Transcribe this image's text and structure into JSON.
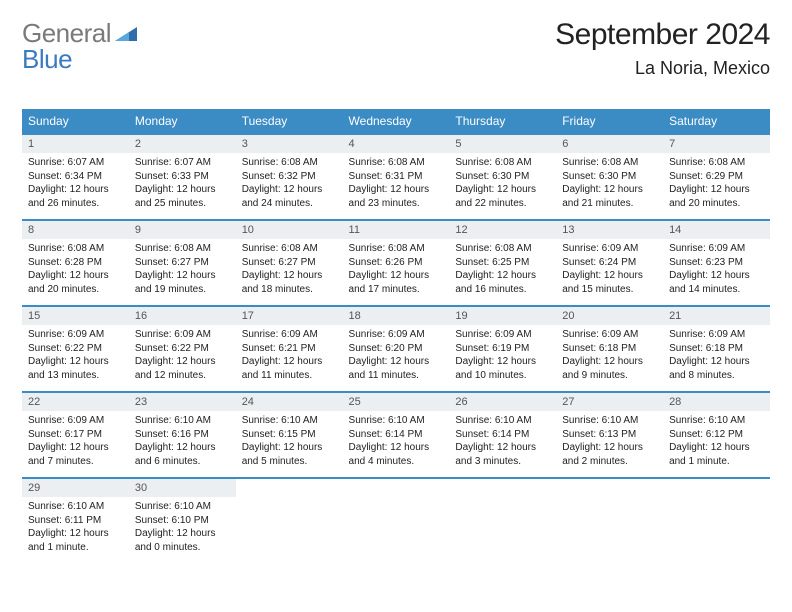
{
  "logo": {
    "text1": "General",
    "text2": "Blue"
  },
  "title": "September 2024",
  "location": "La Noria, Mexico",
  "colors": {
    "header_bg": "#3b8bc5",
    "header_text": "#ffffff",
    "daynum_bg": "#eceff1",
    "daynum_text": "#555555",
    "border": "#3b8bc5",
    "body_text": "#222222",
    "logo_gray": "#7a7a7a",
    "logo_blue": "#3b7bbf"
  },
  "day_headers": [
    "Sunday",
    "Monday",
    "Tuesday",
    "Wednesday",
    "Thursday",
    "Friday",
    "Saturday"
  ],
  "weeks": [
    [
      {
        "n": "1",
        "sr": "6:07 AM",
        "ss": "6:34 PM",
        "dl": "12 hours and 26 minutes."
      },
      {
        "n": "2",
        "sr": "6:07 AM",
        "ss": "6:33 PM",
        "dl": "12 hours and 25 minutes."
      },
      {
        "n": "3",
        "sr": "6:08 AM",
        "ss": "6:32 PM",
        "dl": "12 hours and 24 minutes."
      },
      {
        "n": "4",
        "sr": "6:08 AM",
        "ss": "6:31 PM",
        "dl": "12 hours and 23 minutes."
      },
      {
        "n": "5",
        "sr": "6:08 AM",
        "ss": "6:30 PM",
        "dl": "12 hours and 22 minutes."
      },
      {
        "n": "6",
        "sr": "6:08 AM",
        "ss": "6:30 PM",
        "dl": "12 hours and 21 minutes."
      },
      {
        "n": "7",
        "sr": "6:08 AM",
        "ss": "6:29 PM",
        "dl": "12 hours and 20 minutes."
      }
    ],
    [
      {
        "n": "8",
        "sr": "6:08 AM",
        "ss": "6:28 PM",
        "dl": "12 hours and 20 minutes."
      },
      {
        "n": "9",
        "sr": "6:08 AM",
        "ss": "6:27 PM",
        "dl": "12 hours and 19 minutes."
      },
      {
        "n": "10",
        "sr": "6:08 AM",
        "ss": "6:27 PM",
        "dl": "12 hours and 18 minutes."
      },
      {
        "n": "11",
        "sr": "6:08 AM",
        "ss": "6:26 PM",
        "dl": "12 hours and 17 minutes."
      },
      {
        "n": "12",
        "sr": "6:08 AM",
        "ss": "6:25 PM",
        "dl": "12 hours and 16 minutes."
      },
      {
        "n": "13",
        "sr": "6:09 AM",
        "ss": "6:24 PM",
        "dl": "12 hours and 15 minutes."
      },
      {
        "n": "14",
        "sr": "6:09 AM",
        "ss": "6:23 PM",
        "dl": "12 hours and 14 minutes."
      }
    ],
    [
      {
        "n": "15",
        "sr": "6:09 AM",
        "ss": "6:22 PM",
        "dl": "12 hours and 13 minutes."
      },
      {
        "n": "16",
        "sr": "6:09 AM",
        "ss": "6:22 PM",
        "dl": "12 hours and 12 minutes."
      },
      {
        "n": "17",
        "sr": "6:09 AM",
        "ss": "6:21 PM",
        "dl": "12 hours and 11 minutes."
      },
      {
        "n": "18",
        "sr": "6:09 AM",
        "ss": "6:20 PM",
        "dl": "12 hours and 11 minutes."
      },
      {
        "n": "19",
        "sr": "6:09 AM",
        "ss": "6:19 PM",
        "dl": "12 hours and 10 minutes."
      },
      {
        "n": "20",
        "sr": "6:09 AM",
        "ss": "6:18 PM",
        "dl": "12 hours and 9 minutes."
      },
      {
        "n": "21",
        "sr": "6:09 AM",
        "ss": "6:18 PM",
        "dl": "12 hours and 8 minutes."
      }
    ],
    [
      {
        "n": "22",
        "sr": "6:09 AM",
        "ss": "6:17 PM",
        "dl": "12 hours and 7 minutes."
      },
      {
        "n": "23",
        "sr": "6:10 AM",
        "ss": "6:16 PM",
        "dl": "12 hours and 6 minutes."
      },
      {
        "n": "24",
        "sr": "6:10 AM",
        "ss": "6:15 PM",
        "dl": "12 hours and 5 minutes."
      },
      {
        "n": "25",
        "sr": "6:10 AM",
        "ss": "6:14 PM",
        "dl": "12 hours and 4 minutes."
      },
      {
        "n": "26",
        "sr": "6:10 AM",
        "ss": "6:14 PM",
        "dl": "12 hours and 3 minutes."
      },
      {
        "n": "27",
        "sr": "6:10 AM",
        "ss": "6:13 PM",
        "dl": "12 hours and 2 minutes."
      },
      {
        "n": "28",
        "sr": "6:10 AM",
        "ss": "6:12 PM",
        "dl": "12 hours and 1 minute."
      }
    ],
    [
      {
        "n": "29",
        "sr": "6:10 AM",
        "ss": "6:11 PM",
        "dl": "12 hours and 1 minute."
      },
      {
        "n": "30",
        "sr": "6:10 AM",
        "ss": "6:10 PM",
        "dl": "12 hours and 0 minutes."
      },
      null,
      null,
      null,
      null,
      null
    ]
  ],
  "labels": {
    "sunrise": "Sunrise:",
    "sunset": "Sunset:",
    "daylight": "Daylight:"
  }
}
